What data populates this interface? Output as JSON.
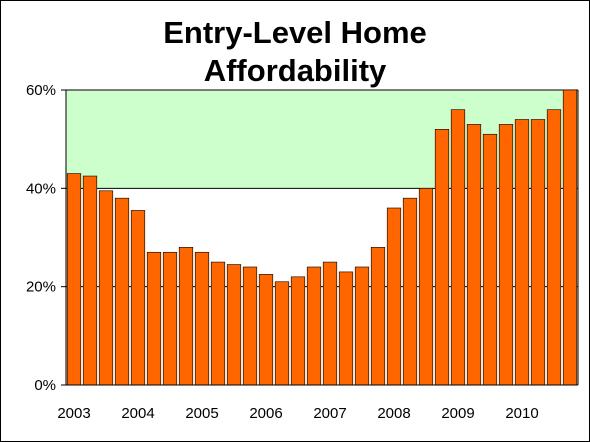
{
  "chart_data": {
    "type": "bar",
    "title_lines": [
      "Entry-Level Home",
      "Affordability"
    ],
    "xlabel": "",
    "ylabel": "",
    "ylim": [
      0,
      60
    ],
    "y_ticks": [
      "0%",
      "20%",
      "40%",
      "60%"
    ],
    "y_tick_values": [
      0,
      20,
      40,
      60
    ],
    "x_tick_labels": [
      "2003",
      "2004",
      "2005",
      "2006",
      "2007",
      "2008",
      "2009",
      "2010"
    ],
    "reference_line": 40,
    "highlight_band": [
      40,
      60
    ],
    "colors": {
      "bar": "#ff6600",
      "bar_edge": "#000000",
      "band": "#ccffcc",
      "plot_bg": "#ffffff"
    },
    "values": [
      43,
      42.5,
      39.5,
      38,
      35.5,
      27,
      27,
      28,
      27,
      25,
      24.5,
      24,
      22.5,
      21,
      22,
      24,
      25,
      23,
      24,
      28,
      36,
      38,
      40,
      52,
      56,
      53,
      51,
      53,
      54,
      54,
      56,
      60
    ]
  }
}
